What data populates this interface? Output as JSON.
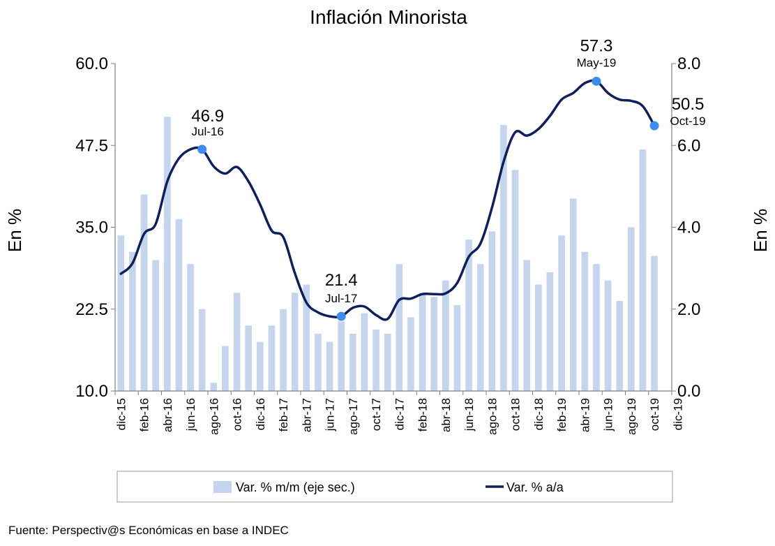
{
  "chart_data": {
    "type": "bar+line",
    "title": "Inflación Minorista",
    "ylabel_left": "En %",
    "ylabel_right": "En %",
    "ylim_left": [
      10,
      60
    ],
    "ylim_right": [
      0,
      8
    ],
    "yticks_left": [
      "10.0",
      "22.5",
      "35.0",
      "47.5",
      "60.0"
    ],
    "yticks_right": [
      "0.0",
      "2.0",
      "4.0",
      "6.0",
      "8.0"
    ],
    "xtick_labels": [
      "dic-15",
      "feb-16",
      "abr-16",
      "jun-16",
      "ago-16",
      "oct-16",
      "dic-16",
      "feb-17",
      "abr-17",
      "jun-17",
      "ago-17",
      "oct-17",
      "dic-17",
      "feb-18",
      "abr-18",
      "jun-18",
      "ago-18",
      "oct-18",
      "dic-18",
      "feb-19",
      "abr-19",
      "jun-19",
      "ago-19",
      "oct-19",
      "dic-19"
    ],
    "months": [
      "dic-15",
      "ene-16",
      "feb-16",
      "mar-16",
      "abr-16",
      "may-16",
      "jun-16",
      "jul-16",
      "ago-16",
      "sep-16",
      "oct-16",
      "nov-16",
      "dic-16",
      "ene-17",
      "feb-17",
      "mar-17",
      "abr-17",
      "may-17",
      "jun-17",
      "jul-17",
      "ago-17",
      "sep-17",
      "oct-17",
      "nov-17",
      "dic-17",
      "ene-18",
      "feb-18",
      "mar-18",
      "abr-18",
      "may-18",
      "jun-18",
      "jul-18",
      "ago-18",
      "sep-18",
      "oct-18",
      "nov-18",
      "dic-18",
      "ene-19",
      "feb-19",
      "mar-19",
      "abr-19",
      "may-19",
      "jun-19",
      "jul-19",
      "ago-19",
      "sep-19",
      "oct-19"
    ],
    "series": [
      {
        "name": "Var. % m/m (eje sec.)",
        "type": "bar",
        "axis": "right",
        "color": "#c5d5ee",
        "values": [
          3.8,
          3.4,
          4.8,
          3.2,
          6.7,
          4.2,
          3.1,
          2.0,
          0.2,
          1.1,
          2.4,
          1.6,
          1.2,
          1.6,
          2.0,
          2.4,
          2.6,
          1.4,
          1.2,
          1.7,
          1.4,
          1.9,
          1.5,
          1.4,
          3.1,
          1.8,
          2.4,
          2.3,
          2.7,
          2.1,
          3.7,
          3.1,
          3.9,
          6.5,
          5.4,
          3.2,
          2.6,
          2.9,
          3.8,
          4.7,
          3.4,
          3.1,
          2.7,
          2.2,
          4.0,
          5.9,
          3.3
        ]
      },
      {
        "name": "Var. % a/a",
        "type": "line",
        "axis": "left",
        "color": "#0d1f5c",
        "values": [
          27.9,
          29.5,
          34.0,
          35.5,
          42.0,
          45.5,
          46.9,
          46.9,
          44.3,
          43.2,
          44.2,
          42.0,
          38.5,
          34.5,
          33.5,
          28.0,
          23.5,
          22.0,
          21.4,
          21.4,
          22.7,
          22.9,
          21.6,
          21.0,
          23.9,
          24.1,
          24.8,
          24.8,
          24.9,
          26.5,
          30.5,
          32.5,
          38.0,
          45.0,
          49.5,
          49.0,
          50.0,
          52.0,
          54.5,
          55.5,
          57.0,
          57.3,
          55.5,
          54.5,
          54.3,
          53.5,
          50.5
        ]
      }
    ],
    "annotations": [
      {
        "index": 7,
        "value": "46.9",
        "label": "Jul-16"
      },
      {
        "index": 19,
        "value": "21.4",
        "label": "Jul-17"
      },
      {
        "index": 41,
        "value": "57.3",
        "label": "May-19"
      },
      {
        "index": 46,
        "value": "50.5",
        "label": "Oct-19"
      }
    ],
    "legend_position": "bottom",
    "grid": false
  },
  "source_text": "Fuente: Perspectiv@s Económicas en base a INDEC",
  "colors": {
    "bar": "#c5d5ee",
    "line": "#0d1f5c",
    "marker": "#3c8cf0",
    "axis": "#7f7f7f"
  }
}
